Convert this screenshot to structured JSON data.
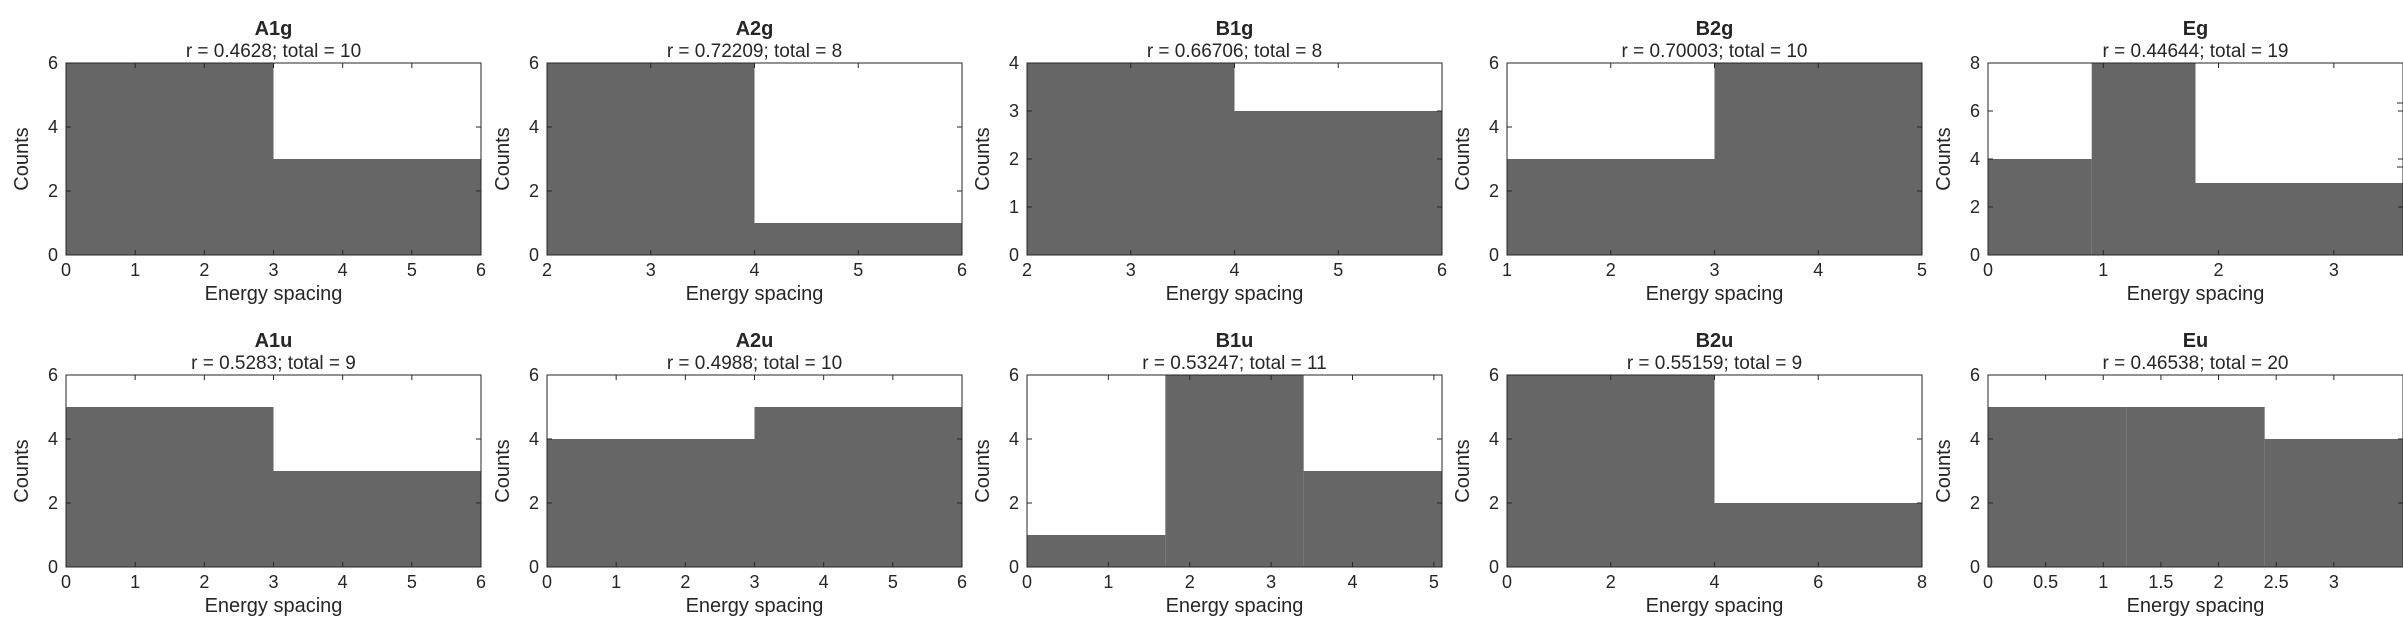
{
  "figure": {
    "xlabel": "Energy spacing",
    "ylabel": "Counts",
    "bar_color": "#666666",
    "axes_color": "#262626"
  },
  "chart_data": [
    {
      "type": "bar",
      "title": "A1g",
      "subtitle": "r = 0.4628; total = 10",
      "edges": [
        0,
        3,
        6
      ],
      "values": [
        6,
        3
      ],
      "xlim": [
        0,
        6
      ],
      "ylim": [
        0,
        6
      ],
      "xticks": [
        0,
        1,
        2,
        3,
        4,
        5,
        6
      ],
      "xtick_labels": [
        "0",
        "1",
        "2",
        "3",
        "4",
        "5",
        "6"
      ],
      "yticks": [
        0,
        2,
        4,
        6
      ],
      "ytick_labels": [
        "0",
        "2",
        "4",
        "6"
      ],
      "xlabel": "Energy spacing",
      "ylabel": "Counts"
    },
    {
      "type": "bar",
      "title": "A2g",
      "subtitle": "r = 0.72209; total = 8",
      "edges": [
        2,
        4,
        6
      ],
      "values": [
        6,
        1
      ],
      "xlim": [
        2,
        6
      ],
      "ylim": [
        0,
        6
      ],
      "xticks": [
        2,
        3,
        4,
        5,
        6
      ],
      "xtick_labels": [
        "2",
        "3",
        "4",
        "5",
        "6"
      ],
      "yticks": [
        0,
        2,
        4,
        6
      ],
      "ytick_labels": [
        "0",
        "2",
        "4",
        "6"
      ],
      "xlabel": "Energy spacing",
      "ylabel": "Counts"
    },
    {
      "type": "bar",
      "title": "B1g",
      "subtitle": "r = 0.66706; total = 8",
      "edges": [
        2,
        4,
        6
      ],
      "values": [
        4,
        3
      ],
      "xlim": [
        2,
        6
      ],
      "ylim": [
        0,
        4
      ],
      "xticks": [
        2,
        3,
        4,
        5,
        6
      ],
      "xtick_labels": [
        "2",
        "3",
        "4",
        "5",
        "6"
      ],
      "yticks": [
        0,
        1,
        2,
        3,
        4
      ],
      "ytick_labels": [
        "0",
        "1",
        "2",
        "3",
        "4"
      ],
      "xlabel": "Energy spacing",
      "ylabel": "Counts"
    },
    {
      "type": "bar",
      "title": "B2g",
      "subtitle": "r = 0.70003; total = 10",
      "edges": [
        1,
        3,
        5
      ],
      "values": [
        3,
        6
      ],
      "xlim": [
        1,
        5
      ],
      "ylim": [
        0,
        6
      ],
      "xticks": [
        1,
        2,
        3,
        4,
        5
      ],
      "xtick_labels": [
        "1",
        "2",
        "3",
        "4",
        "5"
      ],
      "yticks": [
        0,
        2,
        4,
        6
      ],
      "ytick_labels": [
        "0",
        "2",
        "4",
        "6"
      ],
      "xlabel": "Energy spacing",
      "ylabel": "Counts"
    },
    {
      "type": "bar",
      "title": "Eg",
      "subtitle": "r = 0.44644; total = 19",
      "edges": [
        0,
        0.9,
        1.8,
        3.6
      ],
      "values": [
        4,
        8,
        3
      ],
      "xlim": [
        0,
        3.6
      ],
      "ylim": [
        0,
        8
      ],
      "xticks": [
        0,
        1,
        2,
        3
      ],
      "xtick_labels": [
        "0",
        "1",
        "2",
        "3"
      ],
      "yticks": [
        0,
        2,
        4,
        6,
        8
      ],
      "ytick_labels": [
        "0",
        "2",
        "4",
        "6",
        "8"
      ],
      "xlabel": "Energy spacing",
      "ylabel": "Counts"
    },
    {
      "type": "bar",
      "title": "A1u",
      "subtitle": "r = 0.5283; total = 9",
      "edges": [
        0,
        3,
        6
      ],
      "values": [
        5,
        3
      ],
      "xlim": [
        0,
        6
      ],
      "ylim": [
        0,
        6
      ],
      "xticks": [
        0,
        1,
        2,
        3,
        4,
        5,
        6
      ],
      "xtick_labels": [
        "0",
        "1",
        "2",
        "3",
        "4",
        "5",
        "6"
      ],
      "yticks": [
        0,
        2,
        4,
        6
      ],
      "ytick_labels": [
        "0",
        "2",
        "4",
        "6"
      ],
      "xlabel": "Energy spacing",
      "ylabel": "Counts"
    },
    {
      "type": "bar",
      "title": "A2u",
      "subtitle": "r = 0.4988; total = 10",
      "edges": [
        0,
        3,
        6
      ],
      "values": [
        4,
        5
      ],
      "xlim": [
        0,
        6
      ],
      "ylim": [
        0,
        6
      ],
      "xticks": [
        0,
        1,
        2,
        3,
        4,
        5,
        6
      ],
      "xtick_labels": [
        "0",
        "1",
        "2",
        "3",
        "4",
        "5",
        "6"
      ],
      "yticks": [
        0,
        2,
        4,
        6
      ],
      "ytick_labels": [
        "0",
        "2",
        "4",
        "6"
      ],
      "xlabel": "Energy spacing",
      "ylabel": "Counts"
    },
    {
      "type": "bar",
      "title": "B1u",
      "subtitle": "r = 0.53247; total = 11",
      "edges": [
        0,
        1.7,
        3.4,
        5.1
      ],
      "values": [
        1,
        6,
        3
      ],
      "xlim": [
        0,
        5.1
      ],
      "ylim": [
        0,
        6
      ],
      "xticks": [
        0,
        1,
        2,
        3,
        4,
        5
      ],
      "xtick_labels": [
        "0",
        "1",
        "2",
        "3",
        "4",
        "5"
      ],
      "yticks": [
        0,
        2,
        4,
        6
      ],
      "ytick_labels": [
        "0",
        "2",
        "4",
        "6"
      ],
      "xlabel": "Energy spacing",
      "ylabel": "Counts"
    },
    {
      "type": "bar",
      "title": "B2u",
      "subtitle": "r = 0.55159; total = 9",
      "edges": [
        0,
        4,
        8
      ],
      "values": [
        6,
        2
      ],
      "xlim": [
        0,
        8
      ],
      "ylim": [
        0,
        6
      ],
      "xticks": [
        0,
        2,
        4,
        6,
        8
      ],
      "xtick_labels": [
        "0",
        "2",
        "4",
        "6",
        "8"
      ],
      "yticks": [
        0,
        2,
        4,
        6
      ],
      "ytick_labels": [
        "0",
        "2",
        "4",
        "6"
      ],
      "xlabel": "Energy spacing",
      "ylabel": "Counts"
    },
    {
      "type": "bar",
      "title": "Eu",
      "subtitle": "r = 0.46538; total = 20",
      "edges": [
        0,
        1.2,
        2.4,
        3.6
      ],
      "values": [
        5,
        5,
        4
      ],
      "xlim": [
        0,
        3.6
      ],
      "ylim": [
        0,
        6
      ],
      "xticks": [
        0,
        0.5,
        1,
        1.5,
        2,
        2.5,
        3
      ],
      "xtick_labels": [
        "0",
        "0.5",
        "1",
        "1.5",
        "2",
        "2.5",
        "3"
      ],
      "yticks": [
        0,
        2,
        4,
        6
      ],
      "ytick_labels": [
        "0",
        "2",
        "4",
        "6"
      ],
      "xlabel": "Energy spacing",
      "ylabel": "Counts"
    }
  ]
}
